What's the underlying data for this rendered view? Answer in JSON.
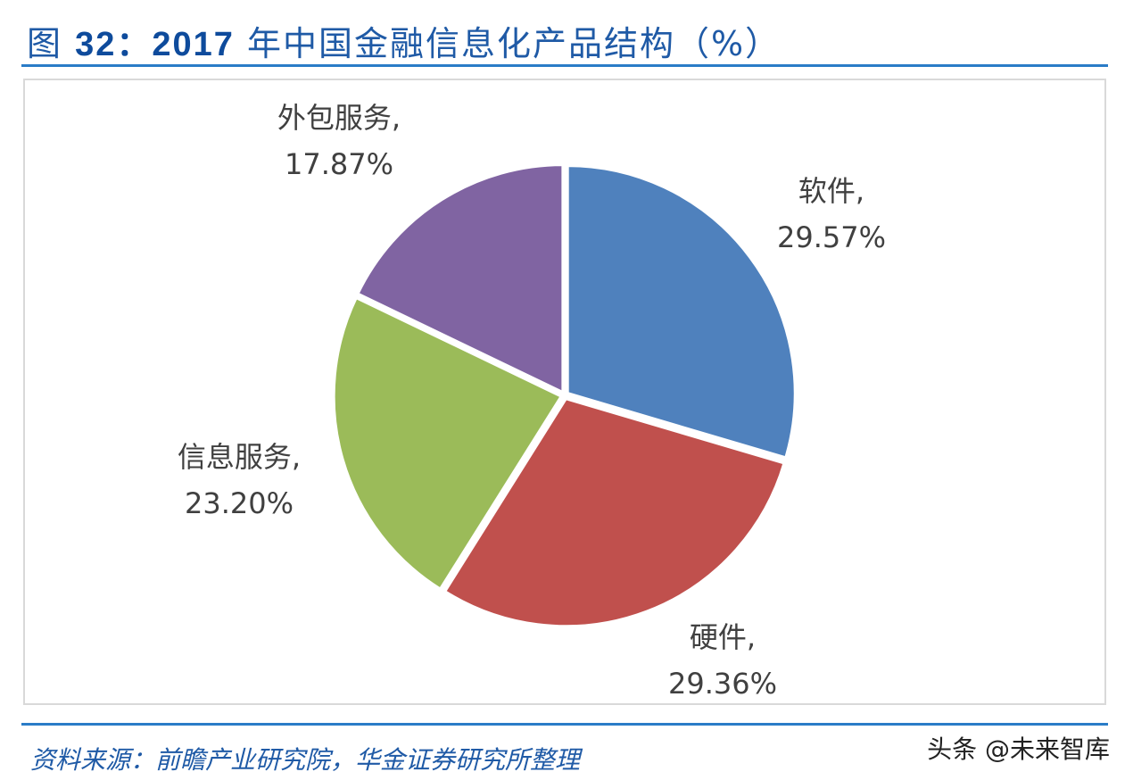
{
  "header": {
    "title_prefix": "图 ",
    "title_num": "32：2017",
    "title_suffix": " 年中国金融信息化产品结构（%）"
  },
  "footer": {
    "source": "资料来源：前瞻产业研究院，华金证券研究所整理",
    "watermark": "头条 @未来智库"
  },
  "chart_data": {
    "type": "pie",
    "title": "图 32：2017 年中国金融信息化产品结构（%）",
    "categories": [
      "软件",
      "硬件",
      "信息服务",
      "外包服务"
    ],
    "values": [
      29.57,
      29.36,
      23.2,
      17.87
    ],
    "colors": [
      "#4f81bd",
      "#c0504d",
      "#9bbb59",
      "#8064a2"
    ],
    "labels": [
      {
        "name": "软件,",
        "value": "29.57%"
      },
      {
        "name": "硬件,",
        "value": "29.36%"
      },
      {
        "name": "信息服务,",
        "value": "23.20%"
      },
      {
        "name": "外包服务,",
        "value": "17.87%"
      }
    ],
    "start_angle": "12 o'clock",
    "direction": "clockwise"
  }
}
